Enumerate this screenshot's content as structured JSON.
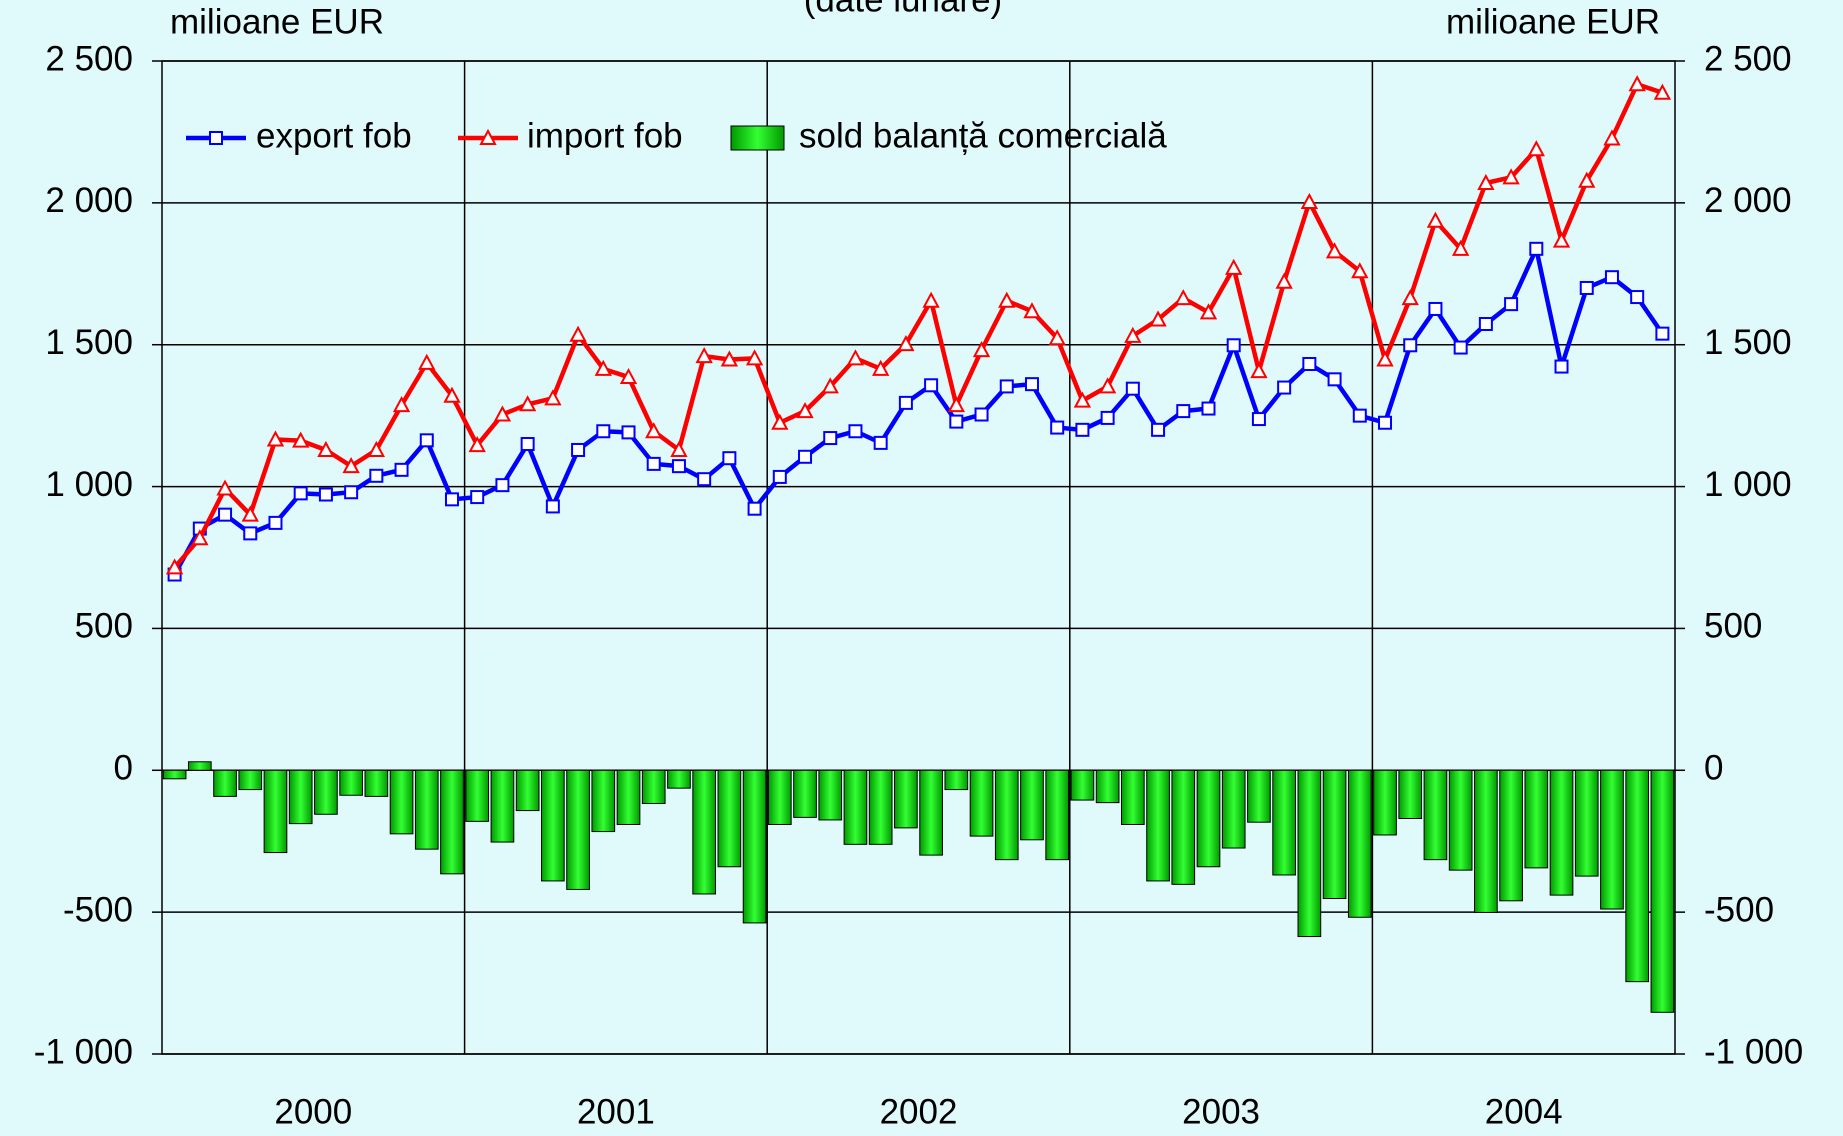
{
  "chart_data": {
    "type": "combo",
    "subtitle": "(date lunare)",
    "y_label": "milioane EUR",
    "y2_label": "milioane EUR",
    "categories": [
      null,
      null,
      null,
      null,
      null,
      null,
      null,
      null,
      null,
      null,
      null,
      null,
      null,
      null,
      null,
      null,
      null,
      null,
      null,
      null,
      null,
      null,
      null,
      null,
      null,
      null,
      null,
      null,
      null,
      null,
      null,
      null,
      null,
      null,
      null,
      null,
      null,
      null,
      null,
      null,
      null,
      null,
      null,
      null,
      null,
      null,
      null,
      null,
      null,
      null,
      null,
      null,
      null,
      null,
      null,
      null,
      null,
      null,
      null,
      null
    ],
    "groups": [
      "2000",
      "2001",
      "2002",
      "2003",
      "2004"
    ],
    "series": [
      {
        "name": "export fob",
        "type": "line",
        "color": "#0000ff",
        "marker": "square",
        "values": [
          690,
          852,
          901,
          835,
          872,
          976,
          972,
          980,
          1038,
          1059,
          1163,
          955,
          963,
          1005,
          1150,
          930,
          1129,
          1195,
          1191,
          1080,
          1072,
          1026,
          1100,
          922,
          1034,
          1105,
          1171,
          1195,
          1154,
          1295,
          1357,
          1229,
          1254,
          1353,
          1361,
          1208,
          1200,
          1242,
          1345,
          1200,
          1266,
          1275,
          1498,
          1238,
          1349,
          1432,
          1378,
          1250,
          1225,
          1498,
          1626,
          1490,
          1573,
          1643,
          1838,
          1423,
          1700,
          1738,
          1668,
          1539
        ]
      },
      {
        "name": "import fob",
        "type": "line",
        "color": "#ff0000",
        "marker": "triangle",
        "values": [
          715,
          818,
          993,
          901,
          1166,
          1162,
          1129,
          1072,
          1129,
          1287,
          1436,
          1320,
          1146,
          1254,
          1290,
          1311,
          1535,
          1415,
          1386,
          1195,
          1129,
          1460,
          1448,
          1452,
          1225,
          1266,
          1353,
          1452,
          1415,
          1502,
          1655,
          1287,
          1481,
          1655,
          1618,
          1523,
          1303,
          1353,
          1531,
          1589,
          1664,
          1614,
          1771,
          1407,
          1722,
          2003,
          1829,
          1759,
          1448,
          1664,
          1937,
          1838,
          2070,
          2090,
          2189,
          1867,
          2078,
          2227,
          2418,
          2388
        ]
      },
      {
        "name": "sold balanță comercială",
        "type": "bar",
        "color": "#00dd00",
        "values": [
          -30,
          30,
          -92,
          -68,
          -290,
          -188,
          -155,
          -88,
          -92,
          -224,
          -278,
          -365,
          -180,
          -253,
          -142,
          -390,
          -420,
          -216,
          -191,
          -117,
          -63,
          -436,
          -340,
          -538,
          -191,
          -166,
          -175,
          -261,
          -261,
          -203,
          -299,
          -68,
          -232,
          -315,
          -245,
          -315,
          -105,
          -114,
          -191,
          -390,
          -402,
          -340,
          -274,
          -183,
          -369,
          -586,
          -452,
          -518,
          -228,
          -170,
          -315,
          -352,
          -501,
          -460,
          -344,
          -440,
          -373,
          -489,
          -745,
          -853
        ]
      }
    ],
    "ylim": [
      -1000,
      2500
    ],
    "yticks": [
      {
        "value": -1000,
        "label": "-1 000"
      },
      -500,
      0,
      500,
      {
        "value": 1000,
        "label": "1 000"
      },
      {
        "value": 1500,
        "label": "1 500"
      },
      {
        "value": 2000,
        "label": "2 000"
      },
      {
        "value": 2500,
        "label": "2 500"
      }
    ],
    "y2lim": [
      -1000,
      2500
    ],
    "y2ticks": [
      {
        "value": -1000,
        "label": "-1 000"
      },
      -500,
      0,
      500,
      {
        "value": 1000,
        "label": "1 000"
      },
      {
        "value": 1500,
        "label": "1 500"
      },
      {
        "value": 2000,
        "label": "2 000"
      },
      {
        "value": 2500,
        "label": "2 500"
      }
    ],
    "grid": true,
    "legend": "top-left",
    "background": "#e0fafc"
  }
}
